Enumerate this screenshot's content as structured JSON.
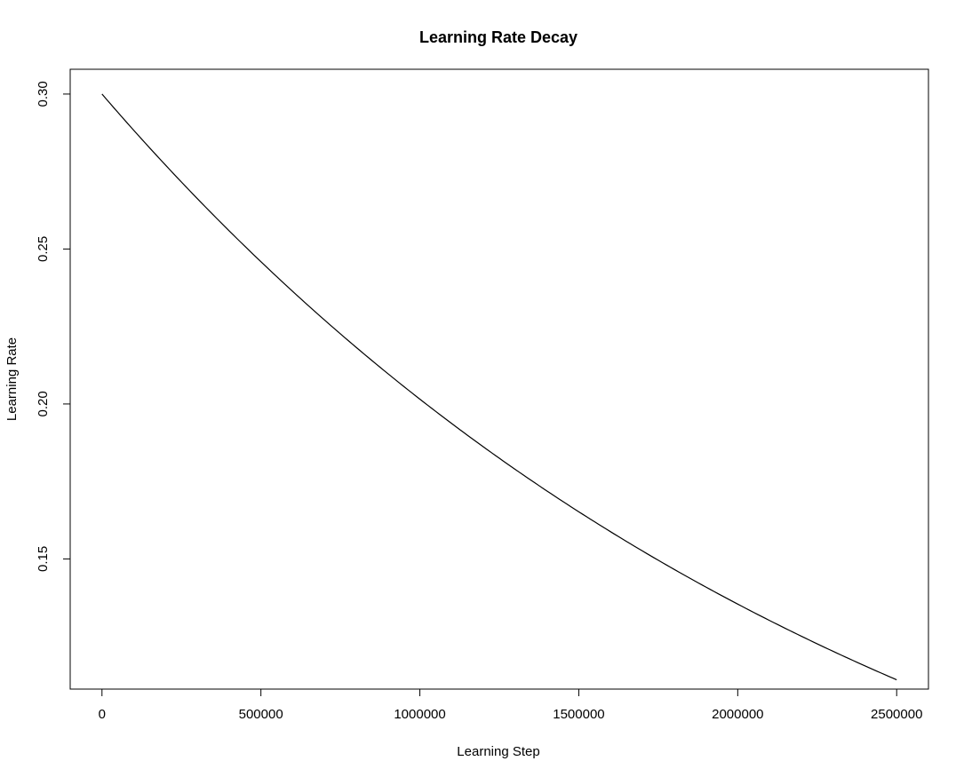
{
  "chart_data": {
    "type": "line",
    "title": "Learning Rate Decay",
    "xlabel": "Learning Step",
    "ylabel": "Learning Rate",
    "xlim": [
      -100000,
      2600000
    ],
    "ylim": [
      0.108,
      0.308
    ],
    "x_ticks": [
      0,
      500000,
      1000000,
      1500000,
      2000000,
      2500000
    ],
    "x_tick_labels": [
      "0",
      "500000",
      "1000000",
      "1500000",
      "2000000",
      "2500000"
    ],
    "y_ticks": [
      0.15,
      0.2,
      0.25,
      0.3
    ],
    "y_tick_labels": [
      "0.15",
      "0.20",
      "0.25",
      "0.30"
    ],
    "grid": false,
    "line_color": "#000000",
    "series": [
      {
        "x": [
          0,
          250000,
          500000,
          750000,
          1000000,
          1250000,
          1500000,
          1750000,
          2000000,
          2250000,
          2500000
        ],
        "values": [
          0.3,
          0.272,
          0.246,
          0.223,
          0.202,
          0.183,
          0.165,
          0.15,
          0.136,
          0.123,
          0.111
        ]
      }
    ]
  }
}
